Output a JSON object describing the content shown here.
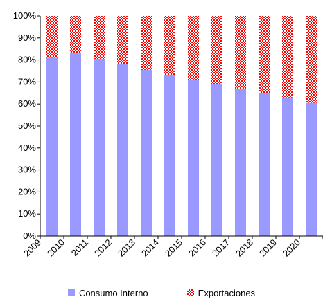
{
  "chart_data": {
    "type": "bar",
    "stacked": true,
    "categories": [
      "2009",
      "2010",
      "2011",
      "2012",
      "2013",
      "2014",
      "2015",
      "2016",
      "2017",
      "2018",
      "2019",
      "2020"
    ],
    "series": [
      {
        "name": "Consumo Interno",
        "color": "#9999ff",
        "pattern": "solid",
        "values": [
          81,
          83,
          80.5,
          78,
          75.5,
          73,
          71,
          69,
          67,
          65,
          63,
          60.5
        ]
      },
      {
        "name": "Exportaciones",
        "color": "#ff0000",
        "pattern": "checkered",
        "values": [
          19,
          17,
          19.5,
          22,
          24.5,
          27,
          29,
          31,
          33,
          35,
          37,
          39.5
        ]
      }
    ],
    "yticks": [
      "0%",
      "10%",
      "20%",
      "30%",
      "40%",
      "50%",
      "60%",
      "70%",
      "80%",
      "90%",
      "100%"
    ],
    "ylim": [
      0,
      100
    ],
    "grid": false,
    "legend_position": "bottom",
    "title": "",
    "xlabel": "",
    "ylabel": ""
  }
}
